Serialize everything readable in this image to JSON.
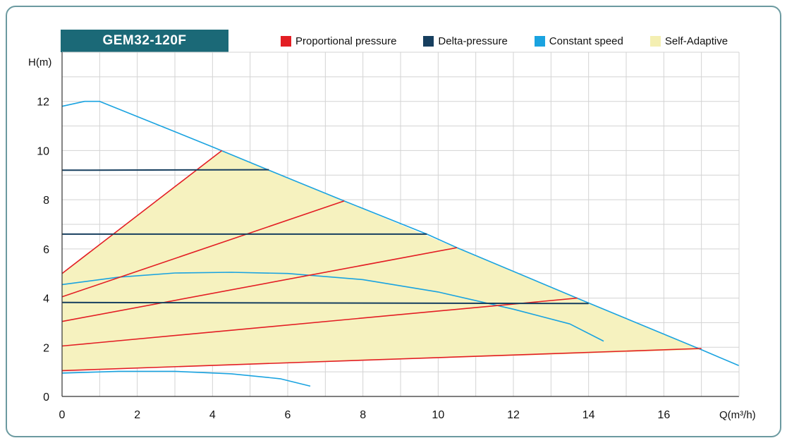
{
  "chart_data": {
    "type": "line",
    "title": "GEM32-120F",
    "xlabel": "Q(m³/h)",
    "ylabel": "H(m)",
    "xlim": [
      0,
      18
    ],
    "ylim": [
      0,
      14
    ],
    "xticks": [
      "0",
      "2",
      "4",
      "6",
      "8",
      "10",
      "12",
      "14",
      "16"
    ],
    "yticks": [
      "0",
      "2",
      "4",
      "6",
      "8",
      "10",
      "12"
    ],
    "grid": true,
    "legend_position": "top",
    "legend": [
      {
        "label": "Proportional pressure",
        "color": "#e31e24",
        "swatch": "#e31e24"
      },
      {
        "label": "Delta-pressure",
        "color": "#173f5f",
        "swatch": "#173f5f"
      },
      {
        "label": "Constant speed",
        "color": "#1aa3e0",
        "swatch": "#1aa3e0"
      },
      {
        "label": "Self-Adaptive",
        "color": "#f6f2bf",
        "swatch": "#f4efb2"
      }
    ],
    "series": [
      {
        "name": "Self-Adaptive",
        "kind": "area",
        "color": "#f6f2bf",
        "points": [
          [
            0,
            1.05
          ],
          [
            0,
            5.0
          ],
          [
            4.25,
            10.0
          ],
          [
            17.0,
            1.9
          ]
        ]
      },
      {
        "name": "Constant speed",
        "kind": "line",
        "color": "#1aa3e0",
        "points": [
          [
            0,
            11.8
          ],
          [
            0.6,
            12.0
          ],
          [
            1.0,
            12.0
          ],
          [
            4.0,
            10.15
          ],
          [
            5.5,
            9.2
          ],
          [
            7.5,
            7.95
          ],
          [
            9.7,
            6.6
          ],
          [
            10.5,
            6.05
          ],
          [
            14.0,
            3.8
          ],
          [
            17.0,
            1.9
          ],
          [
            18.0,
            1.25
          ]
        ]
      },
      {
        "name": "Constant speed",
        "kind": "line",
        "color": "#1aa3e0",
        "points": [
          [
            0,
            4.55
          ],
          [
            1.5,
            4.85
          ],
          [
            3,
            5.02
          ],
          [
            4.5,
            5.05
          ],
          [
            6,
            5.0
          ],
          [
            8,
            4.75
          ],
          [
            10,
            4.25
          ],
          [
            12,
            3.55
          ],
          [
            13.5,
            2.95
          ],
          [
            14.4,
            2.25
          ]
        ]
      },
      {
        "name": "Constant speed",
        "kind": "line",
        "color": "#1aa3e0",
        "points": [
          [
            0,
            0.95
          ],
          [
            1.5,
            1.02
          ],
          [
            3,
            1.02
          ],
          [
            4.5,
            0.92
          ],
          [
            5.8,
            0.72
          ],
          [
            6.6,
            0.42
          ]
        ]
      },
      {
        "name": "Proportional pressure",
        "kind": "line",
        "color": "#e31e24",
        "points": [
          [
            0,
            5.0
          ],
          [
            4.25,
            10.0
          ]
        ]
      },
      {
        "name": "Proportional pressure",
        "kind": "line",
        "color": "#e31e24",
        "points": [
          [
            0,
            4.05
          ],
          [
            7.5,
            7.95
          ]
        ]
      },
      {
        "name": "Proportional pressure",
        "kind": "line",
        "color": "#e31e24",
        "points": [
          [
            0,
            3.05
          ],
          [
            10.5,
            6.05
          ]
        ]
      },
      {
        "name": "Proportional pressure",
        "kind": "line",
        "color": "#e31e24",
        "points": [
          [
            0,
            2.05
          ],
          [
            13.7,
            4.0
          ]
        ]
      },
      {
        "name": "Proportional pressure",
        "kind": "line",
        "color": "#e31e24",
        "points": [
          [
            0,
            1.05
          ],
          [
            17.0,
            1.95
          ]
        ]
      },
      {
        "name": "Delta-pressure",
        "kind": "line",
        "color": "#173f5f",
        "points": [
          [
            0,
            9.2
          ],
          [
            5.5,
            9.22
          ]
        ]
      },
      {
        "name": "Delta-pressure",
        "kind": "line",
        "color": "#173f5f",
        "points": [
          [
            0,
            6.6
          ],
          [
            9.7,
            6.6
          ]
        ]
      },
      {
        "name": "Delta-pressure",
        "kind": "line",
        "color": "#173f5f",
        "points": [
          [
            0,
            3.82
          ],
          [
            14.0,
            3.78
          ]
        ]
      }
    ]
  }
}
